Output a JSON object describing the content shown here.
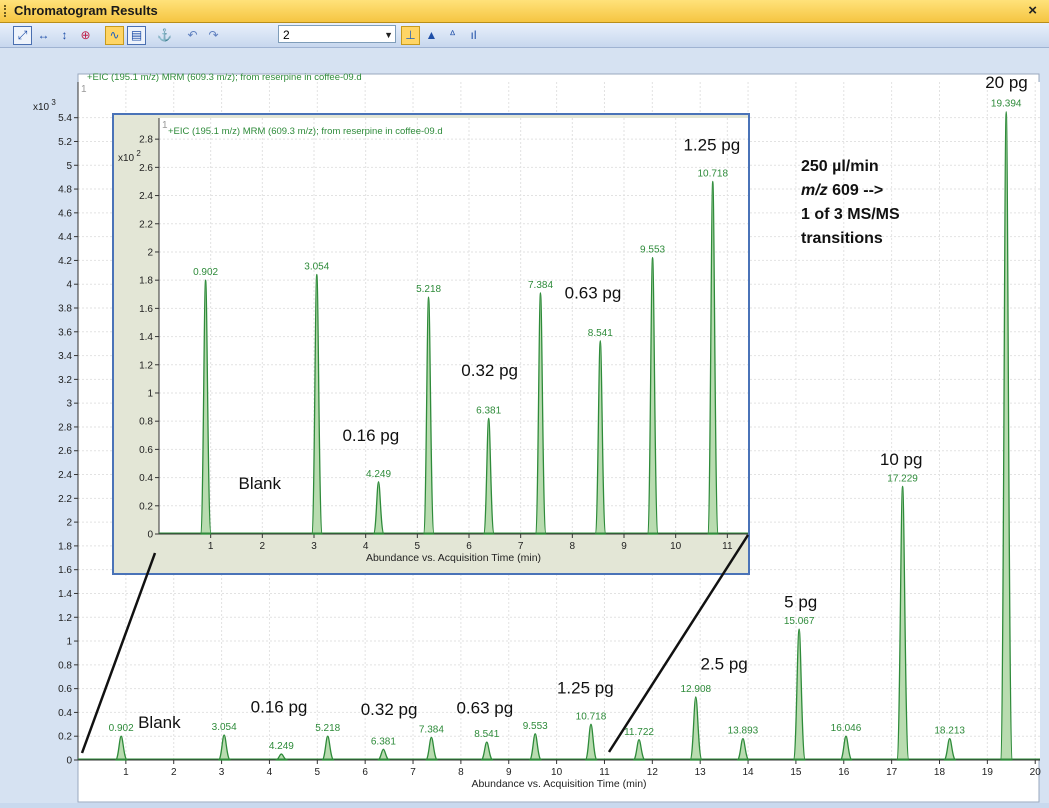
{
  "window": {
    "title": "Chromatogram Results",
    "close_icon": "×"
  },
  "toolbar": {
    "combo_value": "2",
    "buttons": [
      "zoom-fit-icon",
      "fit-x-icon",
      "fit-y-icon",
      "zoom-icon",
      "overlay-icon",
      "split-icon",
      "anchor-icon",
      "undo-icon",
      "redo-icon",
      "peak-label-icon",
      "integration-icon",
      "baseline-icon",
      "spectrum-icon"
    ]
  },
  "annotation": {
    "line1": "250 µl/min",
    "line2_italic": "m/z",
    "line2_rest": " 609 -->",
    "line3": "1 of 3 MS/MS",
    "line4": "transitions"
  },
  "colors": {
    "trace": "#2e8b3a",
    "fill": "#b9dcb0",
    "inset_border": "#4a73b8",
    "plot_bg": "#ffffff"
  },
  "chart_data": [
    {
      "type": "line",
      "subtitle": "+EIC (195.1 m/z) MRM (609.3 m/z); from reserpine in coffee-09.d",
      "panel_number": "1",
      "y_scale_label": "x10 3",
      "xlabel": "Abundance vs. Acquisition Time (min)",
      "xlim": [
        0,
        20.1
      ],
      "ylim": [
        0,
        5.7
      ],
      "x_ticks": [
        1,
        2,
        3,
        4,
        5,
        6,
        7,
        8,
        9,
        10,
        11,
        12,
        13,
        14,
        15,
        16,
        17,
        18,
        19,
        20
      ],
      "y_ticks": [
        0,
        0.2,
        0.4,
        0.6,
        0.8,
        1,
        1.2,
        1.4,
        1.6,
        1.8,
        2,
        2.2,
        2.4,
        2.6,
        2.8,
        3,
        3.2,
        3.4,
        3.6,
        3.8,
        4,
        4.2,
        4.4,
        4.6,
        4.8,
        5,
        5.2,
        5.4
      ],
      "peaks": [
        {
          "rt": 0.902,
          "label": "0.902",
          "height": 0.2
        },
        {
          "rt": 3.054,
          "label": "3.054",
          "height": 0.21
        },
        {
          "rt": 4.249,
          "label": "4.249",
          "height": 0.05
        },
        {
          "rt": 5.218,
          "label": "5.218",
          "height": 0.2
        },
        {
          "rt": 6.381,
          "label": "6.381",
          "height": 0.09
        },
        {
          "rt": 7.384,
          "label": "7.384",
          "height": 0.19
        },
        {
          "rt": 8.541,
          "label": "8.541",
          "height": 0.15
        },
        {
          "rt": 9.553,
          "label": "9.553",
          "height": 0.22
        },
        {
          "rt": 10.718,
          "label": "10.718",
          "height": 0.3
        },
        {
          "rt": 11.722,
          "label": "11.722",
          "height": 0.17
        },
        {
          "rt": 12.908,
          "label": "12.908",
          "height": 0.53
        },
        {
          "rt": 13.893,
          "label": "13.893",
          "height": 0.18
        },
        {
          "rt": 15.067,
          "label": "15.067",
          "height": 1.1
        },
        {
          "rt": 16.046,
          "label": "16.046",
          "height": 0.2
        },
        {
          "rt": 17.229,
          "label": "17.229",
          "height": 2.3
        },
        {
          "rt": 18.213,
          "label": "18.213",
          "height": 0.18
        },
        {
          "rt": 19.394,
          "label": "19.394",
          "height": 5.45
        }
      ],
      "amount_labels": [
        {
          "text": "Blank",
          "x": 1.7,
          "y": 0.27
        },
        {
          "text": "0.16 pg",
          "x": 4.2,
          "y": 0.4
        },
        {
          "text": "0.32 pg",
          "x": 6.5,
          "y": 0.38
        },
        {
          "text": "0.63 pg",
          "x": 8.5,
          "y": 0.39
        },
        {
          "text": "1.25 pg",
          "x": 10.6,
          "y": 0.56
        },
        {
          "text": "2.5 pg",
          "x": 13.5,
          "y": 0.76
        },
        {
          "text": "5 pg",
          "x": 15.1,
          "y": 1.28
        },
        {
          "text": "10 pg",
          "x": 17.2,
          "y": 2.48
        },
        {
          "text": "20 pg",
          "x": 19.4,
          "y": 5.65
        }
      ]
    },
    {
      "type": "line",
      "subtitle": "+EIC (195.1 m/z) MRM (609.3 m/z); from reserpine in coffee-09.d",
      "panel_number": "1",
      "y_scale_label": "x10 2",
      "xlabel": "Abundance vs. Acquisition Time (min)",
      "xlim": [
        0,
        11.4
      ],
      "ylim": [
        0,
        2.95
      ],
      "x_ticks": [
        1,
        2,
        3,
        4,
        5,
        6,
        7,
        8,
        9,
        10,
        11
      ],
      "y_ticks": [
        0,
        0.2,
        0.4,
        0.6,
        0.8,
        1,
        1.2,
        1.4,
        1.6,
        1.8,
        2,
        2.2,
        2.4,
        2.6,
        2.8
      ],
      "peaks": [
        {
          "rt": 0.902,
          "label": "0.902",
          "height": 1.8
        },
        {
          "rt": 3.054,
          "label": "3.054",
          "height": 1.84
        },
        {
          "rt": 4.249,
          "label": "4.249",
          "height": 0.37
        },
        {
          "rt": 5.218,
          "label": "5.218",
          "height": 1.68
        },
        {
          "rt": 6.381,
          "label": "6.381",
          "height": 0.82
        },
        {
          "rt": 7.384,
          "label": "7.384",
          "height": 1.71
        },
        {
          "rt": 8.541,
          "label": "8.541",
          "height": 1.37
        },
        {
          "rt": 9.553,
          "label": "9.553",
          "height": 1.96
        },
        {
          "rt": 10.718,
          "label": "10.718",
          "height": 2.5
        }
      ],
      "amount_labels": [
        {
          "text": "Blank",
          "x": 1.95,
          "y": 0.32
        },
        {
          "text": "0.16 pg",
          "x": 4.1,
          "y": 0.66
        },
        {
          "text": "0.32 pg",
          "x": 6.4,
          "y": 1.12
        },
        {
          "text": "0.63 pg",
          "x": 8.4,
          "y": 1.67
        },
        {
          "text": "1.25 pg",
          "x": 10.7,
          "y": 2.72
        }
      ]
    }
  ]
}
